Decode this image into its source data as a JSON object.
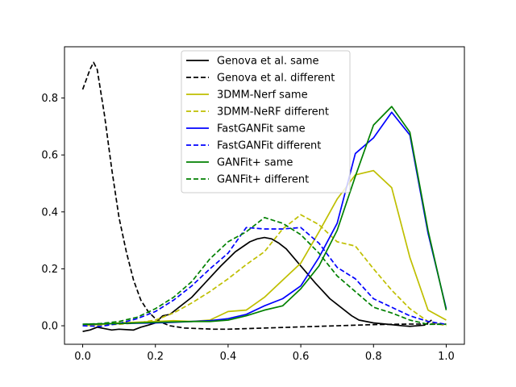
{
  "chart_data": {
    "type": "line",
    "title": "",
    "xlabel": "",
    "ylabel": "",
    "xlim": [
      -0.05,
      1.05
    ],
    "ylim": [
      -0.065,
      0.98
    ],
    "xticks": [
      "0.0",
      "0.2",
      "0.4",
      "0.6",
      "0.8",
      "1.0"
    ],
    "yticks": [
      "0.0",
      "0.2",
      "0.4",
      "0.6",
      "0.8"
    ],
    "grid": false,
    "legend_position": "top-center",
    "series": [
      {
        "name": "Genova et al. same",
        "color": "#000000",
        "dash": "solid",
        "x": [
          0.0,
          0.02,
          0.04,
          0.06,
          0.08,
          0.1,
          0.14,
          0.16,
          0.18,
          0.2,
          0.22,
          0.24,
          0.26,
          0.3,
          0.34,
          0.38,
          0.42,
          0.46,
          0.48,
          0.5,
          0.52,
          0.54,
          0.56,
          0.6,
          0.64,
          0.68,
          0.7,
          0.74,
          0.76,
          0.8,
          0.84,
          0.88,
          0.9,
          0.92,
          0.94,
          0.96
        ],
        "y": [
          -0.02,
          -0.015,
          -0.005,
          -0.01,
          -0.015,
          -0.012,
          -0.015,
          -0.005,
          0.002,
          0.01,
          0.035,
          0.04,
          0.06,
          0.1,
          0.155,
          0.21,
          0.26,
          0.295,
          0.305,
          0.31,
          0.305,
          0.29,
          0.27,
          0.21,
          0.15,
          0.095,
          0.075,
          0.035,
          0.02,
          0.01,
          0.005,
          0.0,
          -0.002,
          0.0,
          0.002,
          0.02
        ]
      },
      {
        "name": "Genova et al. different",
        "color": "#000000",
        "dash": "dashed",
        "x": [
          0.0,
          0.02,
          0.03,
          0.04,
          0.06,
          0.08,
          0.1,
          0.12,
          0.14,
          0.16,
          0.18,
          0.2,
          0.22,
          0.24,
          0.28,
          0.32,
          0.36,
          0.4,
          0.5,
          0.6,
          0.7,
          0.8,
          0.9,
          1.0
        ],
        "y": [
          0.83,
          0.9,
          0.925,
          0.9,
          0.74,
          0.55,
          0.38,
          0.26,
          0.16,
          0.09,
          0.05,
          0.025,
          0.01,
          0.0,
          -0.008,
          -0.01,
          -0.012,
          -0.012,
          -0.008,
          -0.004,
          0.0,
          0.004,
          0.006,
          0.006
        ]
      },
      {
        "name": "3DMM-Nerf same",
        "color": "#bfbf00",
        "dash": "solid",
        "x": [
          0.0,
          0.1,
          0.2,
          0.25,
          0.3,
          0.35,
          0.4,
          0.45,
          0.5,
          0.55,
          0.6,
          0.65,
          0.7,
          0.75,
          0.8,
          0.85,
          0.9,
          0.95,
          1.0
        ],
        "y": [
          0.0,
          0.01,
          0.015,
          0.018,
          0.015,
          0.02,
          0.05,
          0.055,
          0.1,
          0.16,
          0.22,
          0.33,
          0.445,
          0.53,
          0.545,
          0.485,
          0.24,
          0.055,
          0.02
        ]
      },
      {
        "name": "3DMM-NeRF different",
        "color": "#bfbf00",
        "dash": "dashed",
        "x": [
          0.0,
          0.05,
          0.1,
          0.15,
          0.2,
          0.25,
          0.3,
          0.35,
          0.4,
          0.45,
          0.5,
          0.55,
          0.6,
          0.65,
          0.7,
          0.75,
          0.8,
          0.85,
          0.9,
          0.95,
          1.0
        ],
        "y": [
          0.0,
          0.002,
          0.005,
          0.01,
          0.02,
          0.045,
          0.08,
          0.12,
          0.165,
          0.215,
          0.26,
          0.34,
          0.39,
          0.355,
          0.295,
          0.28,
          0.2,
          0.125,
          0.06,
          0.015,
          0.0
        ]
      },
      {
        "name": "FastGANFit same",
        "color": "#0000ff",
        "dash": "solid",
        "x": [
          0.0,
          0.1,
          0.2,
          0.25,
          0.3,
          0.35,
          0.4,
          0.45,
          0.5,
          0.55,
          0.6,
          0.65,
          0.7,
          0.75,
          0.8,
          0.85,
          0.9,
          0.95,
          1.0
        ],
        "y": [
          0.005,
          0.008,
          0.01,
          0.012,
          0.015,
          0.018,
          0.025,
          0.04,
          0.07,
          0.095,
          0.14,
          0.24,
          0.36,
          0.605,
          0.66,
          0.75,
          0.67,
          0.325,
          0.06
        ]
      },
      {
        "name": "FastGANFit different",
        "color": "#0000ff",
        "dash": "dashed",
        "x": [
          0.0,
          0.05,
          0.1,
          0.15,
          0.2,
          0.25,
          0.3,
          0.35,
          0.4,
          0.45,
          0.5,
          0.55,
          0.6,
          0.65,
          0.7,
          0.75,
          0.8,
          0.85,
          0.9,
          0.95,
          1.0
        ],
        "y": [
          0.0,
          -0.002,
          0.008,
          0.025,
          0.05,
          0.09,
          0.14,
          0.2,
          0.255,
          0.345,
          0.34,
          0.34,
          0.345,
          0.29,
          0.205,
          0.165,
          0.095,
          0.065,
          0.035,
          0.015,
          0.005
        ]
      },
      {
        "name": "GANFit+ same",
        "color": "#008000",
        "dash": "solid",
        "x": [
          0.0,
          0.1,
          0.2,
          0.3,
          0.35,
          0.4,
          0.45,
          0.5,
          0.55,
          0.6,
          0.65,
          0.7,
          0.75,
          0.8,
          0.85,
          0.9,
          0.95,
          1.0
        ],
        "y": [
          0.005,
          0.008,
          0.012,
          0.015,
          0.015,
          0.02,
          0.035,
          0.055,
          0.07,
          0.13,
          0.21,
          0.335,
          0.525,
          0.705,
          0.77,
          0.68,
          0.335,
          0.055
        ]
      },
      {
        "name": "GANFit+ different",
        "color": "#008000",
        "dash": "dashed",
        "x": [
          0.0,
          0.05,
          0.1,
          0.15,
          0.2,
          0.25,
          0.3,
          0.35,
          0.4,
          0.45,
          0.5,
          0.55,
          0.6,
          0.65,
          0.7,
          0.75,
          0.8,
          0.85,
          0.9,
          0.95,
          1.0
        ],
        "y": [
          0.005,
          0.008,
          0.015,
          0.03,
          0.06,
          0.1,
          0.155,
          0.235,
          0.295,
          0.33,
          0.38,
          0.36,
          0.32,
          0.255,
          0.175,
          0.12,
          0.065,
          0.045,
          0.02,
          0.005,
          0.005
        ]
      }
    ]
  }
}
